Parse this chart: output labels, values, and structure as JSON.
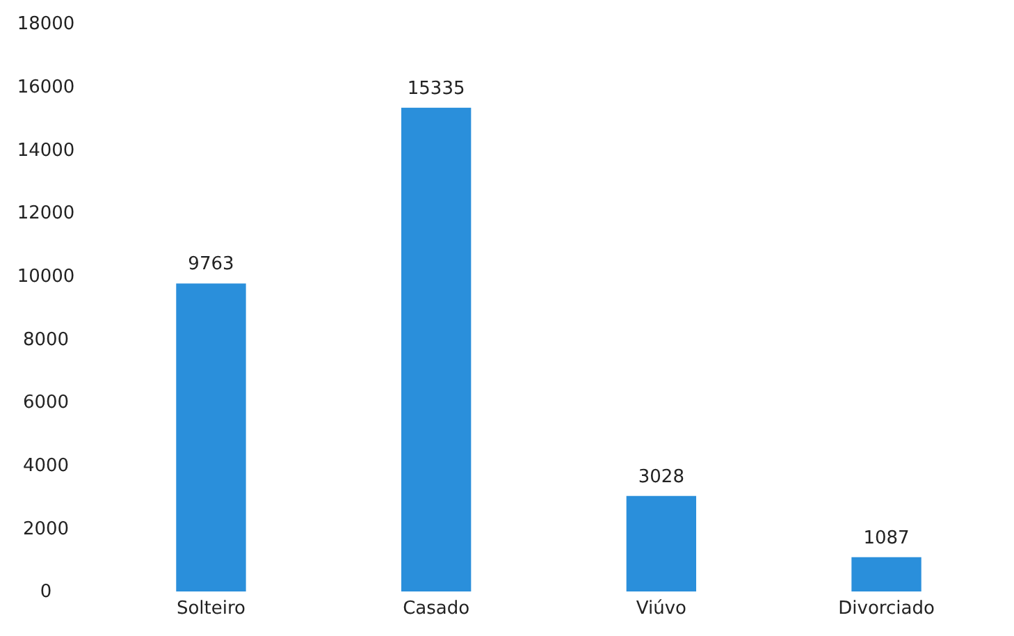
{
  "chart_data": {
    "type": "bar",
    "categories": [
      "Solteiro",
      "Casado",
      "Viúvo",
      "Divorciado"
    ],
    "values": [
      9763,
      15335,
      3028,
      1087
    ],
    "color": "#2a8fdb",
    "ylim": [
      0,
      18000
    ],
    "yticks": [
      0,
      2000,
      4000,
      6000,
      8000,
      10000,
      12000,
      14000,
      16000,
      18000
    ],
    "data_labels": true
  }
}
